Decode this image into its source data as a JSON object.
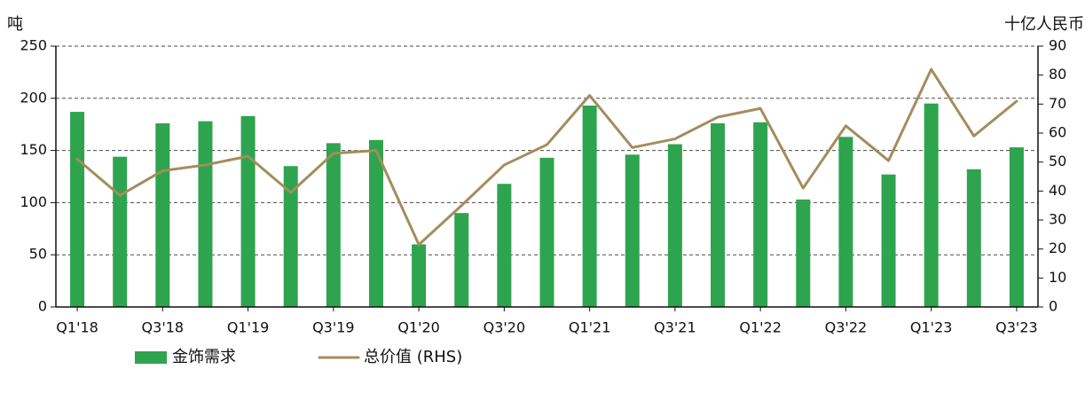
{
  "chart_data": {
    "type": "bar",
    "categories": [
      "Q1'18",
      "Q2'18",
      "Q3'18",
      "Q4'18",
      "Q1'19",
      "Q2'19",
      "Q3'19",
      "Q4'19",
      "Q1'20",
      "Q2'20",
      "Q3'20",
      "Q4'20",
      "Q1'21",
      "Q2'21",
      "Q3'21",
      "Q4'21",
      "Q1'22",
      "Q2'22",
      "Q3'22",
      "Q4'22",
      "Q1'23",
      "Q2'23",
      "Q3'23"
    ],
    "x_tick_labels": [
      "Q1'18",
      "Q3'18",
      "Q1'19",
      "Q3'19",
      "Q1'20",
      "Q3'20",
      "Q1'21",
      "Q3'21",
      "Q1'22",
      "Q3'22",
      "Q1'23",
      "Q3'23"
    ],
    "series": [
      {
        "name": "金饰需求",
        "type": "bar",
        "axis": "left",
        "color": "#2ea44f",
        "values": [
          187,
          144,
          176,
          178,
          183,
          135,
          157,
          160,
          60,
          90,
          118,
          143,
          193,
          146,
          156,
          176,
          177,
          103,
          163,
          127,
          195,
          132,
          153
        ]
      },
      {
        "name": "总价值 (RHS)",
        "type": "line",
        "axis": "right",
        "color": "#a38d5d",
        "values": [
          51,
          38.5,
          47,
          49,
          52,
          39.5,
          53,
          54,
          21.5,
          35,
          49,
          56,
          73,
          55,
          58,
          65.5,
          68.5,
          41,
          62.5,
          50.5,
          82,
          59,
          71
        ]
      }
    ],
    "y_left": {
      "label": "吨",
      "ylim": [
        0,
        250
      ],
      "ticks": [
        0,
        50,
        100,
        150,
        200,
        250
      ]
    },
    "y_right": {
      "label": "十亿人民币",
      "ylim": [
        0,
        90
      ],
      "ticks": [
        0,
        10,
        20,
        30,
        40,
        50,
        60,
        70,
        80,
        90
      ]
    },
    "grid": {
      "horizontal": true,
      "style": "dashed"
    },
    "legend": {
      "position": "bottom-left"
    }
  }
}
